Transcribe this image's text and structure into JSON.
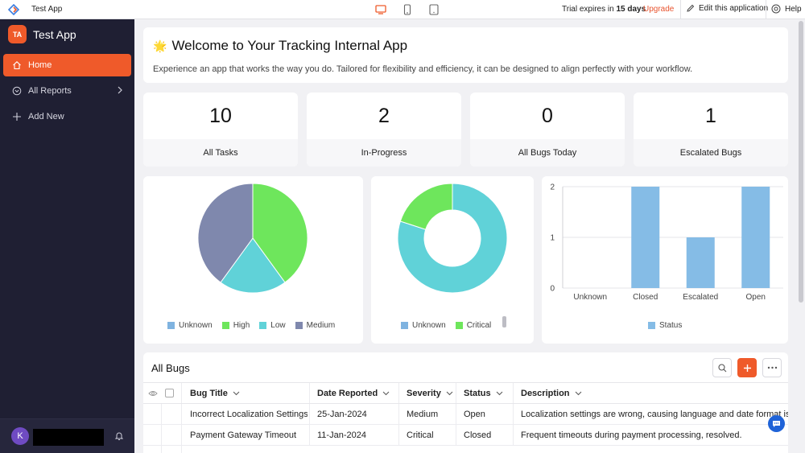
{
  "topbar": {
    "app_title": "Test App",
    "trial_prefix": "Trial expires in ",
    "trial_days": "15 days",
    "upgrade": "Upgrade",
    "edit": "Edit this application",
    "help": "Help"
  },
  "sidebar": {
    "app_initials": "TA",
    "app_name": "Test App",
    "items": [
      {
        "label": "Home",
        "icon": "home-icon"
      },
      {
        "label": "All Reports",
        "icon": "reports-icon"
      },
      {
        "label": "Add New",
        "icon": "plus-icon"
      }
    ],
    "user_initial": "K"
  },
  "welcome": {
    "emoji": "🌟",
    "title": "Welcome to Your Tracking Internal App",
    "subtitle": "Experience an app that works the way you do. Tailored for flexibility and efficiency, it can be designed to align perfectly with your workflow."
  },
  "kpis": [
    {
      "value": "10",
      "label": "All Tasks"
    },
    {
      "value": "2",
      "label": "In-Progress"
    },
    {
      "value": "0",
      "label": "All Bugs Today"
    },
    {
      "value": "1",
      "label": "Escalated Bugs"
    }
  ],
  "chart_data": [
    {
      "type": "pie",
      "categories": [
        "Unknown",
        "High",
        "Low",
        "Medium"
      ],
      "values": [
        0,
        4,
        2,
        4
      ],
      "colors": [
        "#7fb3e0",
        "#6ee65c",
        "#60d2d8",
        "#7f88ad"
      ]
    },
    {
      "type": "pie",
      "donut": true,
      "categories": [
        "Unknown",
        "Critical"
      ],
      "values": [
        4,
        1
      ],
      "colors": [
        "#60d2d8",
        "#6ee65c"
      ],
      "legend_colors": [
        "#7fb3e0",
        "#6ee65c"
      ]
    },
    {
      "type": "bar",
      "categories": [
        "Unknown",
        "Closed",
        "Escalated",
        "Open"
      ],
      "series": [
        {
          "name": "Status",
          "values": [
            0,
            2,
            1,
            2
          ]
        }
      ],
      "ylim": [
        0,
        2
      ],
      "yticks": [
        "0",
        "1",
        "2"
      ],
      "color": "#85bce6"
    }
  ],
  "bugs": {
    "title": "All Bugs",
    "columns": [
      "Bug Title",
      "Date Reported",
      "Severity",
      "Status",
      "Description"
    ],
    "rows": [
      [
        "Incorrect Localization Settings",
        "25-Jan-2024",
        "Medium",
        "Open",
        "Localization settings are wrong, causing language and date format issues. Unre"
      ],
      [
        "Payment Gateway Timeout",
        "11-Jan-2024",
        "Critical",
        "Closed",
        "Frequent timeouts during payment processing, resolved."
      ]
    ]
  }
}
